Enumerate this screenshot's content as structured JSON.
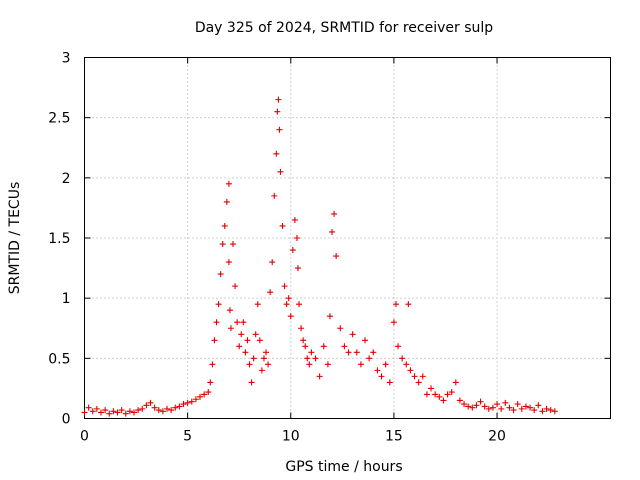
{
  "chart_data": {
    "type": "scatter",
    "title": "Day 325 of 2024, SRMTID for receiver sulp",
    "xlabel": "GPS time / hours",
    "ylabel": "SRMTID / TECUs",
    "xlim": [
      0,
      25.5
    ],
    "ylim": [
      0,
      3
    ],
    "xticks": [
      "0",
      "5",
      "10",
      "15",
      "20"
    ],
    "xtick_values": [
      0,
      5,
      10,
      15,
      20
    ],
    "yticks": [
      "0",
      "0.5",
      "1",
      "1.5",
      "2",
      "2.5",
      "3"
    ],
    "ytick_values": [
      0,
      0.5,
      1,
      1.5,
      2,
      2.5,
      3
    ],
    "grid": true,
    "marker": "+",
    "color": "#e00000",
    "series": [
      {
        "name": "sulp",
        "x": [
          0.0,
          0.2,
          0.4,
          0.6,
          0.8,
          1.0,
          1.2,
          1.4,
          1.6,
          1.8,
          2.0,
          2.2,
          2.4,
          2.6,
          2.8,
          3.0,
          3.2,
          3.4,
          3.6,
          3.8,
          4.0,
          4.2,
          4.4,
          4.6,
          4.8,
          5.0,
          5.2,
          5.4,
          5.6,
          5.8,
          6.0,
          6.1,
          6.2,
          6.3,
          6.4,
          6.5,
          6.6,
          6.7,
          6.8,
          6.9,
          7.0,
          7.0,
          7.05,
          7.1,
          7.2,
          7.3,
          7.4,
          7.5,
          7.6,
          7.7,
          7.8,
          7.9,
          8.0,
          8.1,
          8.2,
          8.3,
          8.4,
          8.5,
          8.6,
          8.7,
          8.8,
          8.9,
          9.0,
          9.1,
          9.2,
          9.3,
          9.35,
          9.4,
          9.45,
          9.5,
          9.6,
          9.7,
          9.8,
          9.9,
          10.0,
          10.1,
          10.2,
          10.3,
          10.35,
          10.4,
          10.5,
          10.6,
          10.7,
          10.8,
          10.9,
          11.0,
          11.2,
          11.4,
          11.6,
          11.8,
          11.9,
          12.0,
          12.1,
          12.2,
          12.4,
          12.6,
          12.8,
          13.0,
          13.2,
          13.4,
          13.6,
          13.8,
          14.0,
          14.2,
          14.4,
          14.6,
          14.8,
          15.0,
          15.1,
          15.2,
          15.4,
          15.6,
          15.7,
          15.8,
          16.0,
          16.2,
          16.4,
          16.6,
          16.8,
          17.0,
          17.2,
          17.4,
          17.6,
          17.8,
          18.0,
          18.2,
          18.4,
          18.6,
          18.8,
          19.0,
          19.2,
          19.4,
          19.6,
          19.8,
          20.0,
          20.2,
          20.4,
          20.6,
          20.8,
          21.0,
          21.2,
          21.4,
          21.6,
          21.8,
          22.0,
          22.2,
          22.4,
          22.6,
          22.8
        ],
        "y": [
          0.05,
          0.09,
          0.06,
          0.08,
          0.05,
          0.07,
          0.04,
          0.06,
          0.05,
          0.07,
          0.04,
          0.06,
          0.05,
          0.07,
          0.08,
          0.11,
          0.13,
          0.09,
          0.07,
          0.06,
          0.08,
          0.07,
          0.09,
          0.1,
          0.12,
          0.13,
          0.14,
          0.16,
          0.18,
          0.2,
          0.22,
          0.3,
          0.45,
          0.65,
          0.8,
          0.95,
          1.2,
          1.45,
          1.6,
          1.8,
          1.95,
          1.3,
          0.9,
          0.75,
          1.45,
          1.1,
          0.8,
          0.6,
          0.7,
          0.8,
          0.55,
          0.65,
          0.45,
          0.3,
          0.5,
          0.7,
          0.95,
          0.65,
          0.4,
          0.5,
          0.55,
          0.45,
          1.05,
          1.3,
          1.85,
          2.2,
          2.55,
          2.65,
          2.4,
          2.05,
          1.6,
          1.1,
          0.95,
          1.0,
          0.85,
          1.4,
          1.65,
          1.5,
          1.25,
          0.95,
          0.75,
          0.65,
          0.6,
          0.5,
          0.45,
          0.55,
          0.5,
          0.35,
          0.6,
          0.45,
          0.85,
          1.55,
          1.7,
          1.35,
          0.75,
          0.6,
          0.55,
          0.7,
          0.55,
          0.45,
          0.65,
          0.5,
          0.55,
          0.4,
          0.35,
          0.45,
          0.3,
          0.8,
          0.95,
          0.6,
          0.5,
          0.45,
          0.95,
          0.4,
          0.35,
          0.3,
          0.35,
          0.2,
          0.25,
          0.2,
          0.18,
          0.15,
          0.2,
          0.22,
          0.3,
          0.15,
          0.12,
          0.1,
          0.09,
          0.11,
          0.14,
          0.1,
          0.08,
          0.09,
          0.12,
          0.08,
          0.13,
          0.09,
          0.07,
          0.12,
          0.08,
          0.1,
          0.09,
          0.07,
          0.11,
          0.06,
          0.08,
          0.07,
          0.06
        ]
      }
    ]
  }
}
